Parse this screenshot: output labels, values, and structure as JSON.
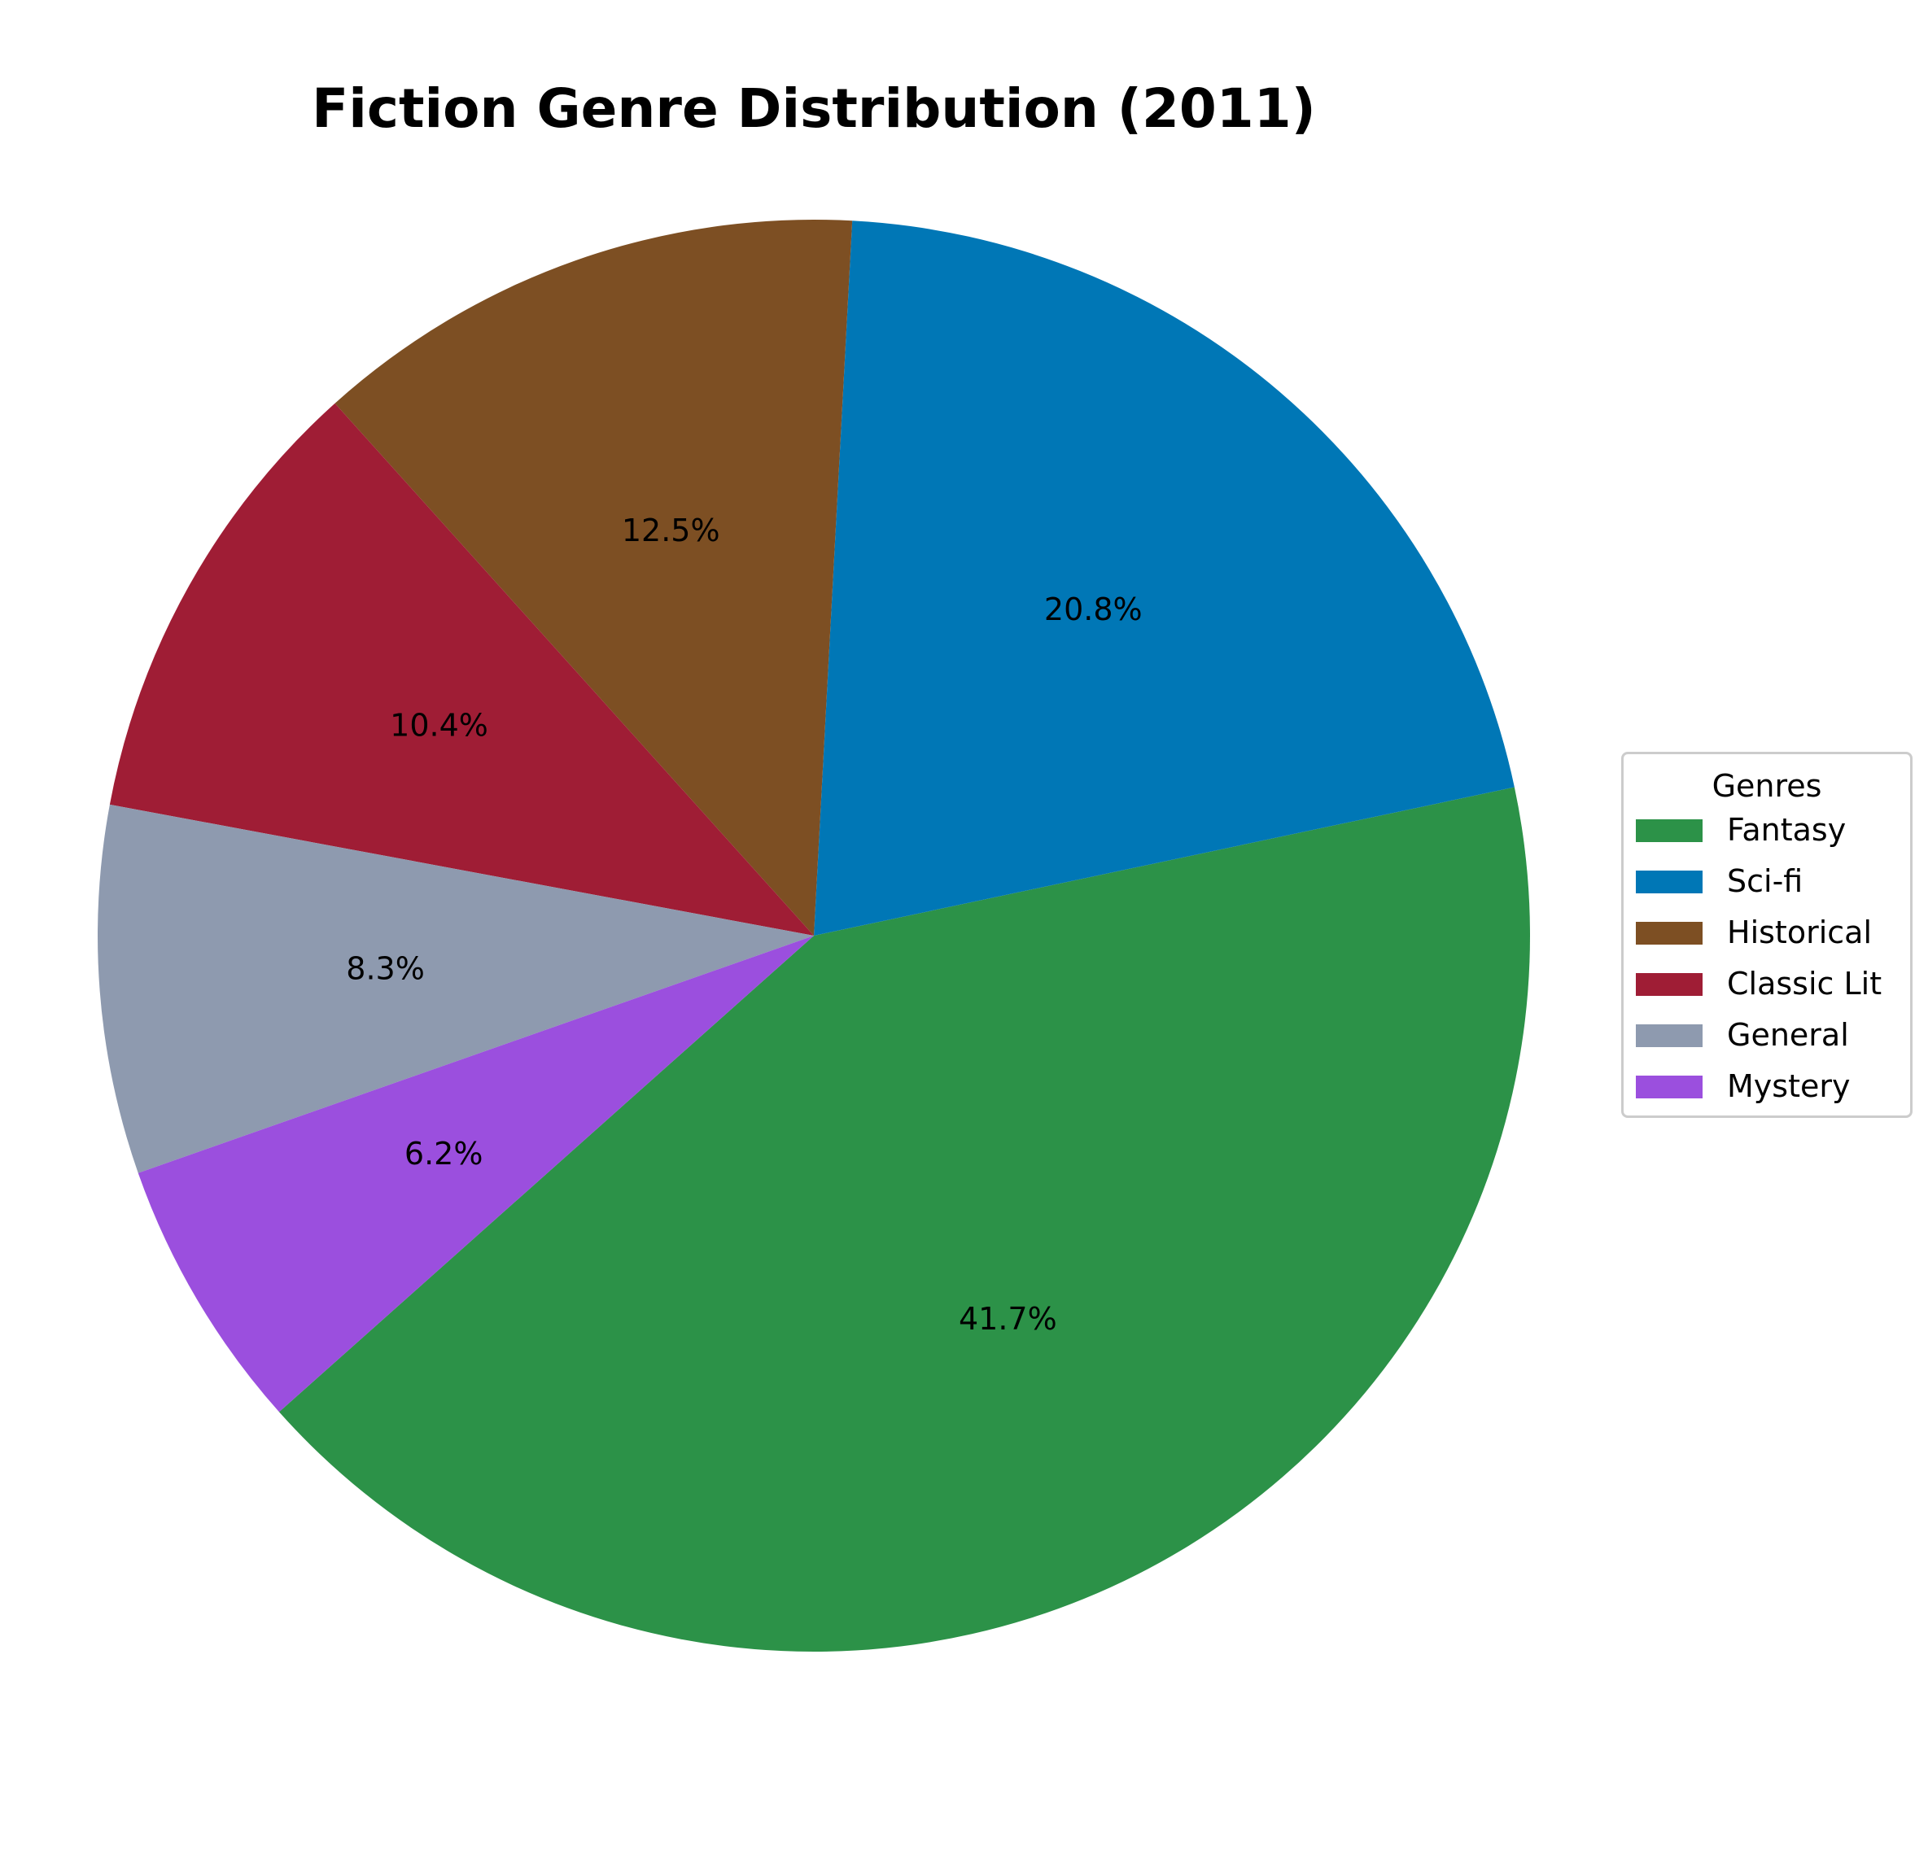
{
  "chart_data": {
    "type": "pie",
    "title": "Fiction Genre Distribution (2011)",
    "legend": {
      "title": "Genres",
      "placement": "right"
    },
    "slices": [
      {
        "label": "Fantasy",
        "value": 41.7,
        "pct_label": "41.7%",
        "color": "#2c9248"
      },
      {
        "label": "Sci-fi",
        "value": 20.8,
        "pct_label": "20.8%",
        "color": "#0077b6"
      },
      {
        "label": "Historical",
        "value": 12.5,
        "pct_label": "12.5%",
        "color": "#7d4f23"
      },
      {
        "label": "Classic Lit",
        "value": 10.4,
        "pct_label": "10.4%",
        "color": "#9f1d35"
      },
      {
        "label": "General",
        "value": 8.3,
        "pct_label": "8.3%",
        "color": "#8e9aaf"
      },
      {
        "label": "Mystery",
        "value": 6.2,
        "pct_label": "6.2%",
        "color": "#9b4fde"
      }
    ]
  }
}
